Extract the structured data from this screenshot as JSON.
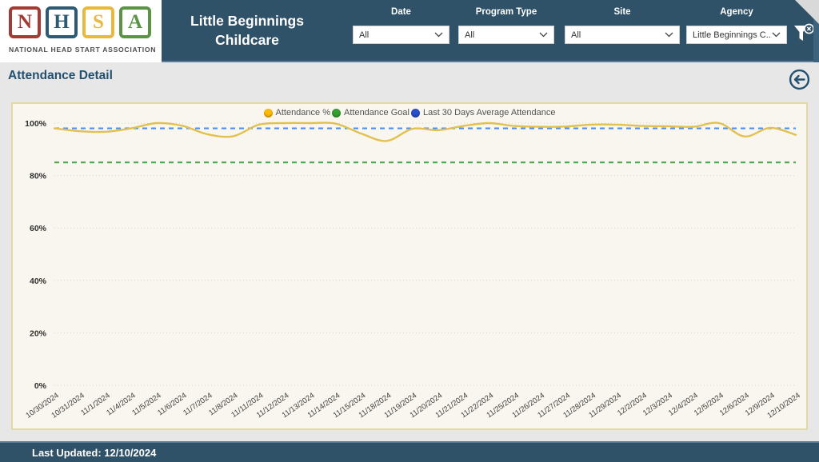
{
  "header": {
    "logo": {
      "blocks": [
        {
          "letter": "N",
          "color": "#a33b34"
        },
        {
          "letter": "H",
          "color": "#2d5972"
        },
        {
          "letter": "S",
          "color": "#e9b93c"
        },
        {
          "letter": "A",
          "color": "#5c9346"
        }
      ],
      "caption": "NATIONAL HEAD START ASSOCIATION"
    },
    "title": "Little Beginnings Childcare",
    "filters": [
      {
        "label": "Date",
        "value": "All"
      },
      {
        "label": "Program Type",
        "value": "All"
      },
      {
        "label": "Site",
        "value": "All"
      },
      {
        "label": "Agency",
        "value": "Little Beginnings C..."
      }
    ],
    "colors": {
      "header_bg": "#2f5269",
      "edge_highlight": "#5c7d99"
    }
  },
  "page": {
    "title": "Attendance Detail"
  },
  "chart_data": {
    "type": "line",
    "title": "",
    "xlabel": "",
    "ylabel": "",
    "ylim": [
      0,
      100
    ],
    "yticks": [
      0,
      20,
      40,
      60,
      80,
      100
    ],
    "grid": true,
    "legend_position": "top",
    "x": [
      "10/30/2024",
      "10/31/2024",
      "11/1/2024",
      "11/4/2024",
      "11/5/2024",
      "11/6/2024",
      "11/7/2024",
      "11/8/2024",
      "11/11/2024",
      "11/12/2024",
      "11/13/2024",
      "11/14/2024",
      "11/15/2024",
      "11/18/2024",
      "11/19/2024",
      "11/20/2024",
      "11/21/2024",
      "11/22/2024",
      "11/25/2024",
      "11/26/2024",
      "11/27/2024",
      "11/28/2024",
      "11/29/2024",
      "12/2/2024",
      "12/3/2024",
      "12/4/2024",
      "12/5/2024",
      "12/6/2024",
      "12/9/2024",
      "12/10/2024"
    ],
    "series": [
      {
        "name": "Attendance %",
        "color": "#e2c14e",
        "dot_color": "#ffb900",
        "style": "solid",
        "values": [
          98,
          96.9,
          96.7,
          98,
          100,
          99,
          95.7,
          95,
          99.4,
          100,
          100,
          99.8,
          96,
          93.2,
          97.8,
          97.3,
          98.9,
          100,
          98.9,
          98.6,
          98.7,
          99.4,
          99.4,
          98.9,
          98.8,
          98.6,
          100,
          94.9,
          98.2,
          95.5
        ]
      },
      {
        "name": "Attendance Goal",
        "color": "#4fa64f",
        "dot_color": "#35a02f",
        "style": "dashed",
        "value": 85
      },
      {
        "name": "Last 30 Days Average Attendance",
        "color": "#4d8ff0",
        "dot_color": "#2850c8",
        "style": "dashed",
        "value": 98
      }
    ]
  },
  "footer": {
    "last_updated": "Last Updated: 12/10/2024"
  }
}
